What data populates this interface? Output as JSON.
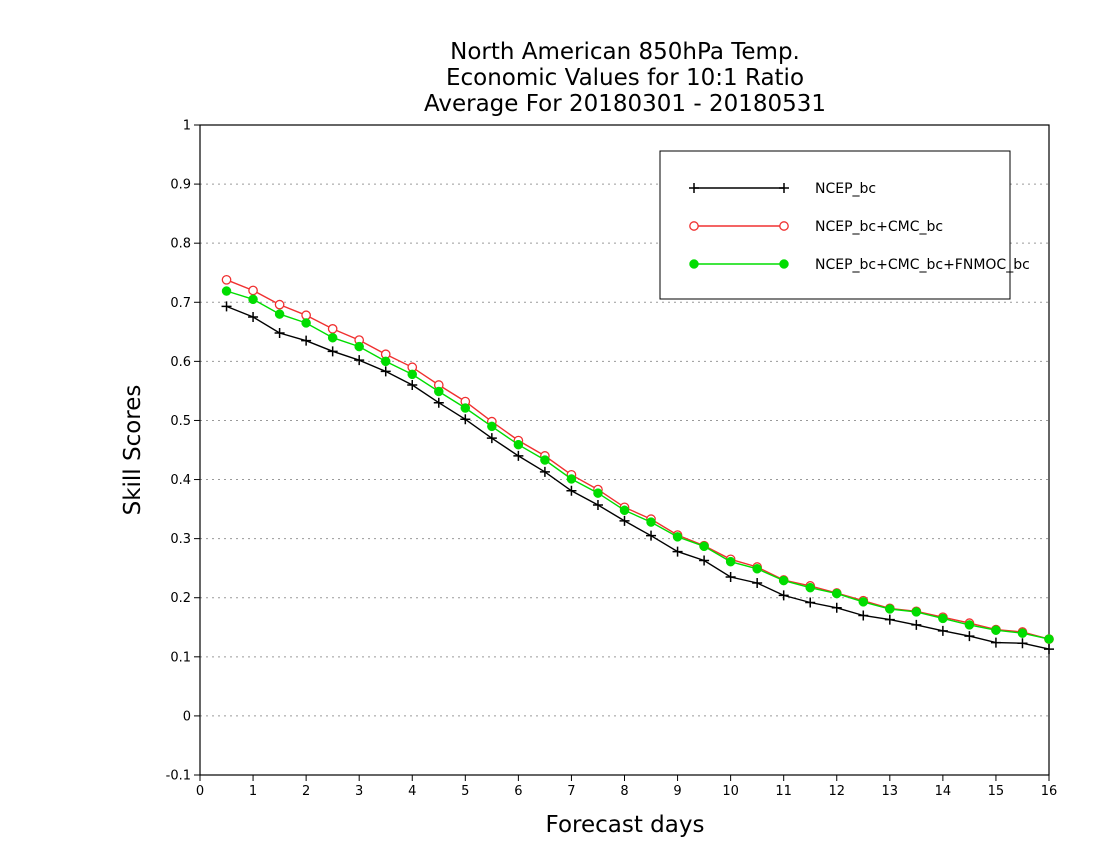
{
  "chart_data": {
    "type": "line",
    "title_lines": [
      "North American 850hPa Temp.",
      "Economic Values for 10:1 Ratio",
      "Average For 20180301 - 20180531"
    ],
    "xlabel": "Forecast days",
    "ylabel": "Skill Scores",
    "xlim": [
      0,
      16
    ],
    "ylim": [
      -0.1,
      1
    ],
    "xticks": [
      0,
      1,
      2,
      3,
      4,
      5,
      6,
      7,
      8,
      9,
      10,
      11,
      12,
      13,
      14,
      15,
      16
    ],
    "yticks": [
      -0.1,
      0,
      0.1,
      0.2,
      0.3,
      0.4,
      0.5,
      0.6,
      0.7,
      0.8,
      0.9,
      1
    ],
    "ytick_labels": [
      "-0.1",
      "0",
      "0.1",
      "0.2",
      "0.3",
      "0.4",
      "0.5",
      "0.6",
      "0.7",
      "0.8",
      "0.9",
      "1"
    ],
    "grid": true,
    "legend_position": "top-right",
    "x": [
      0.5,
      1,
      1.5,
      2,
      2.5,
      3,
      3.5,
      4,
      4.5,
      5,
      5.5,
      6,
      6.5,
      7,
      7.5,
      8,
      8.5,
      9,
      9.5,
      10,
      10.5,
      11,
      11.5,
      12,
      12.5,
      13,
      13.5,
      14,
      14.5,
      15,
      15.5,
      16
    ],
    "series": [
      {
        "name": "NCEP_bc",
        "color": "#000000",
        "marker": "plus",
        "values": [
          0.693,
          0.675,
          0.648,
          0.635,
          0.617,
          0.602,
          0.583,
          0.56,
          0.53,
          0.502,
          0.47,
          0.44,
          0.413,
          0.381,
          0.357,
          0.33,
          0.305,
          0.278,
          0.263,
          0.235,
          0.225,
          0.204,
          0.192,
          0.183,
          0.17,
          0.163,
          0.154,
          0.144,
          0.135,
          0.124,
          0.123,
          0.113
        ]
      },
      {
        "name": "NCEP_bc+CMC_bc",
        "color": "#f03030",
        "marker": "open-circle",
        "values": [
          0.738,
          0.72,
          0.696,
          0.678,
          0.655,
          0.636,
          0.612,
          0.59,
          0.56,
          0.532,
          0.498,
          0.466,
          0.44,
          0.408,
          0.383,
          0.353,
          0.333,
          0.306,
          0.288,
          0.265,
          0.252,
          0.23,
          0.22,
          0.208,
          0.195,
          0.182,
          0.177,
          0.167,
          0.157,
          0.146,
          0.142,
          0.13
        ]
      },
      {
        "name": "NCEP_bc+CMC_bc+FNMOC_bc",
        "color": "#00dd00",
        "marker": "filled-circle",
        "values": [
          0.719,
          0.705,
          0.68,
          0.665,
          0.64,
          0.625,
          0.6,
          0.578,
          0.549,
          0.521,
          0.49,
          0.459,
          0.433,
          0.401,
          0.377,
          0.348,
          0.328,
          0.303,
          0.287,
          0.261,
          0.249,
          0.229,
          0.217,
          0.207,
          0.193,
          0.181,
          0.176,
          0.165,
          0.154,
          0.145,
          0.14,
          0.13
        ]
      }
    ]
  }
}
